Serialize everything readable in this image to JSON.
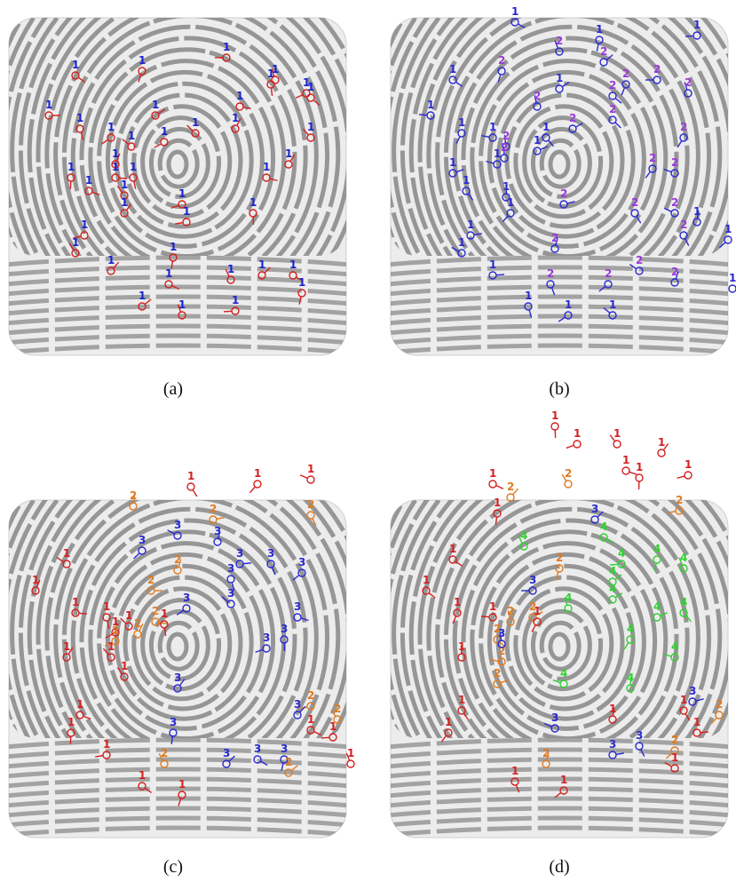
{
  "panels": [
    {
      "caption": "(a)",
      "marker_color": "#d42020",
      "label_colors": [
        "#1a22d0"
      ],
      "markers": [
        "1",
        "1",
        "1",
        "1",
        "1",
        "1",
        "1",
        "1",
        "1",
        "1",
        "1",
        "1",
        "1",
        "1",
        "1",
        "1",
        "1",
        "1",
        "1",
        "1",
        "1",
        "1",
        "1",
        "1",
        "1",
        "1",
        "1",
        "1",
        "1",
        "1",
        "1",
        "1",
        "1",
        "1",
        "1",
        "1",
        "1",
        "1",
        "1",
        "1",
        "1"
      ]
    },
    {
      "caption": "(b)",
      "marker_color": "#2a2ad0",
      "label_colors": [
        "#2a2ad0",
        "#9a3ad8"
      ],
      "markers": [
        "1",
        "1",
        "1",
        "2",
        "2",
        "1",
        "2",
        "2",
        "2",
        "1",
        "2",
        "2",
        "1",
        "2",
        "2",
        "2",
        "1",
        "1",
        "2",
        "1",
        "1",
        "2",
        "1",
        "2",
        "1",
        "1",
        "2",
        "2",
        "1",
        "2",
        "2",
        "1",
        "2",
        "1",
        "1",
        "2",
        "1",
        "1",
        "2",
        "1",
        "2",
        "2",
        "2",
        "2",
        "1",
        "1",
        "1",
        "1"
      ]
    },
    {
      "caption": "(c)",
      "label_colors": [
        "#d42020",
        "#e07a20",
        "#2a2ad0"
      ],
      "markers": [
        "1",
        "1",
        "1",
        "2",
        "2",
        "2",
        "3",
        "3",
        "3",
        "3",
        "3",
        "3",
        "1",
        "2",
        "2",
        "3",
        "3",
        "3",
        "1",
        "1",
        "1",
        "1",
        "1",
        "2",
        "2",
        "1",
        "2",
        "1",
        "1",
        "3",
        "3",
        "3",
        "1",
        "3",
        "1",
        "1",
        "2",
        "2",
        "3",
        "1",
        "3",
        "1",
        "2",
        "3",
        "3",
        "3",
        "1",
        "1",
        "2",
        "1",
        "1"
      ]
    },
    {
      "caption": "(d)",
      "label_colors": [
        "#d42020",
        "#e07a20",
        "#2a2ad0",
        "#30d030"
      ],
      "markers": [
        "1",
        "1",
        "1",
        "1",
        "1",
        "1",
        "1",
        "2",
        "2",
        "1",
        "1",
        "2",
        "4",
        "3",
        "4",
        "4",
        "4",
        "4",
        "4",
        "1",
        "2",
        "3",
        "4",
        "4",
        "1",
        "1",
        "1",
        "2",
        "2",
        "2",
        "1",
        "2",
        "3",
        "4",
        "4",
        "4",
        "4",
        "1",
        "2",
        "1",
        "1",
        "4",
        "4",
        "3",
        "1",
        "2",
        "3",
        "1",
        "3",
        "3",
        "2",
        "1",
        "2",
        "1",
        "1",
        "1"
      ]
    }
  ]
}
